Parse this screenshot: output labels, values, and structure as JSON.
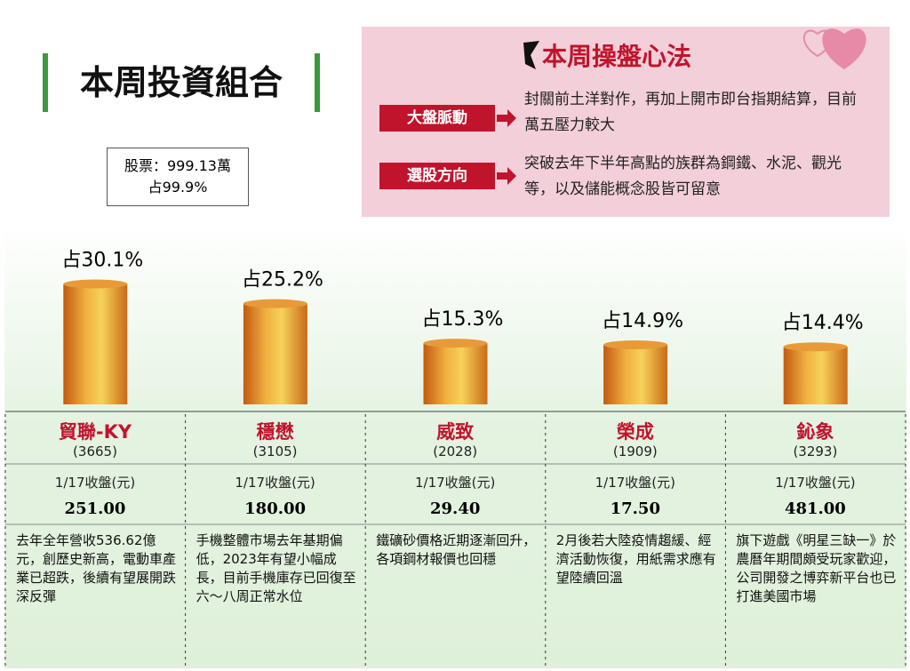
{
  "title": "本周投資組合",
  "holding": {
    "line1": "股票：999.13萬",
    "line2": "占99.9%"
  },
  "strategy": {
    "title": "本周操盤心法",
    "items": [
      {
        "label": "大盤脈動",
        "text": "封關前土洋對作，再加上開市即台指期結算，目前萬五壓力較大"
      },
      {
        "label": "選股方向",
        "text": "突破去年下半年高點的族群為鋼鐵、水泥、觀光等，以及儲能概念股皆可留意"
      }
    ]
  },
  "chart_data": {
    "type": "bar",
    "categories": [
      "貿聯-KY",
      "穩懋",
      "威致",
      "榮成",
      "鈊象"
    ],
    "values": [
      30.1,
      25.2,
      15.3,
      14.9,
      14.4
    ],
    "value_labels": [
      "占30.1%",
      "占25.2%",
      "占15.3%",
      "占14.9%",
      "占14.4%"
    ]
  },
  "details": [
    {
      "code": "(3665)",
      "price_label": "1/17收盤(元)",
      "price": "251.00",
      "note": "去年全年營收536.62億元，創歷史新高，電動車產業已超跌，後續有望展開跌深反彈"
    },
    {
      "code": "(3105)",
      "price_label": "1/17收盤(元)",
      "price": "180.00",
      "note": "手機整體市場去年基期偏低，2023年有望小幅成長，目前手機庫存已回復至六～八周正常水位"
    },
    {
      "code": "(2028)",
      "price_label": "1/17收盤(元)",
      "price": "29.40",
      "note": "鐵礦砂價格近期逐漸回升，各項鋼材報價也回穩"
    },
    {
      "code": "(1909)",
      "price_label": "1/17收盤(元)",
      "price": "17.50",
      "note": "2月後若大陸疫情趨緩、經濟活動恢復，用紙需求應有望陸續回溫"
    },
    {
      "code": "(3293)",
      "price_label": "1/17收盤(元)",
      "price": "481.00",
      "note": "旗下遊戲《明星三缺一》於農曆年期間頗受玩家歡迎，公司開發之博弈新平台也已打進美國市場"
    }
  ]
}
